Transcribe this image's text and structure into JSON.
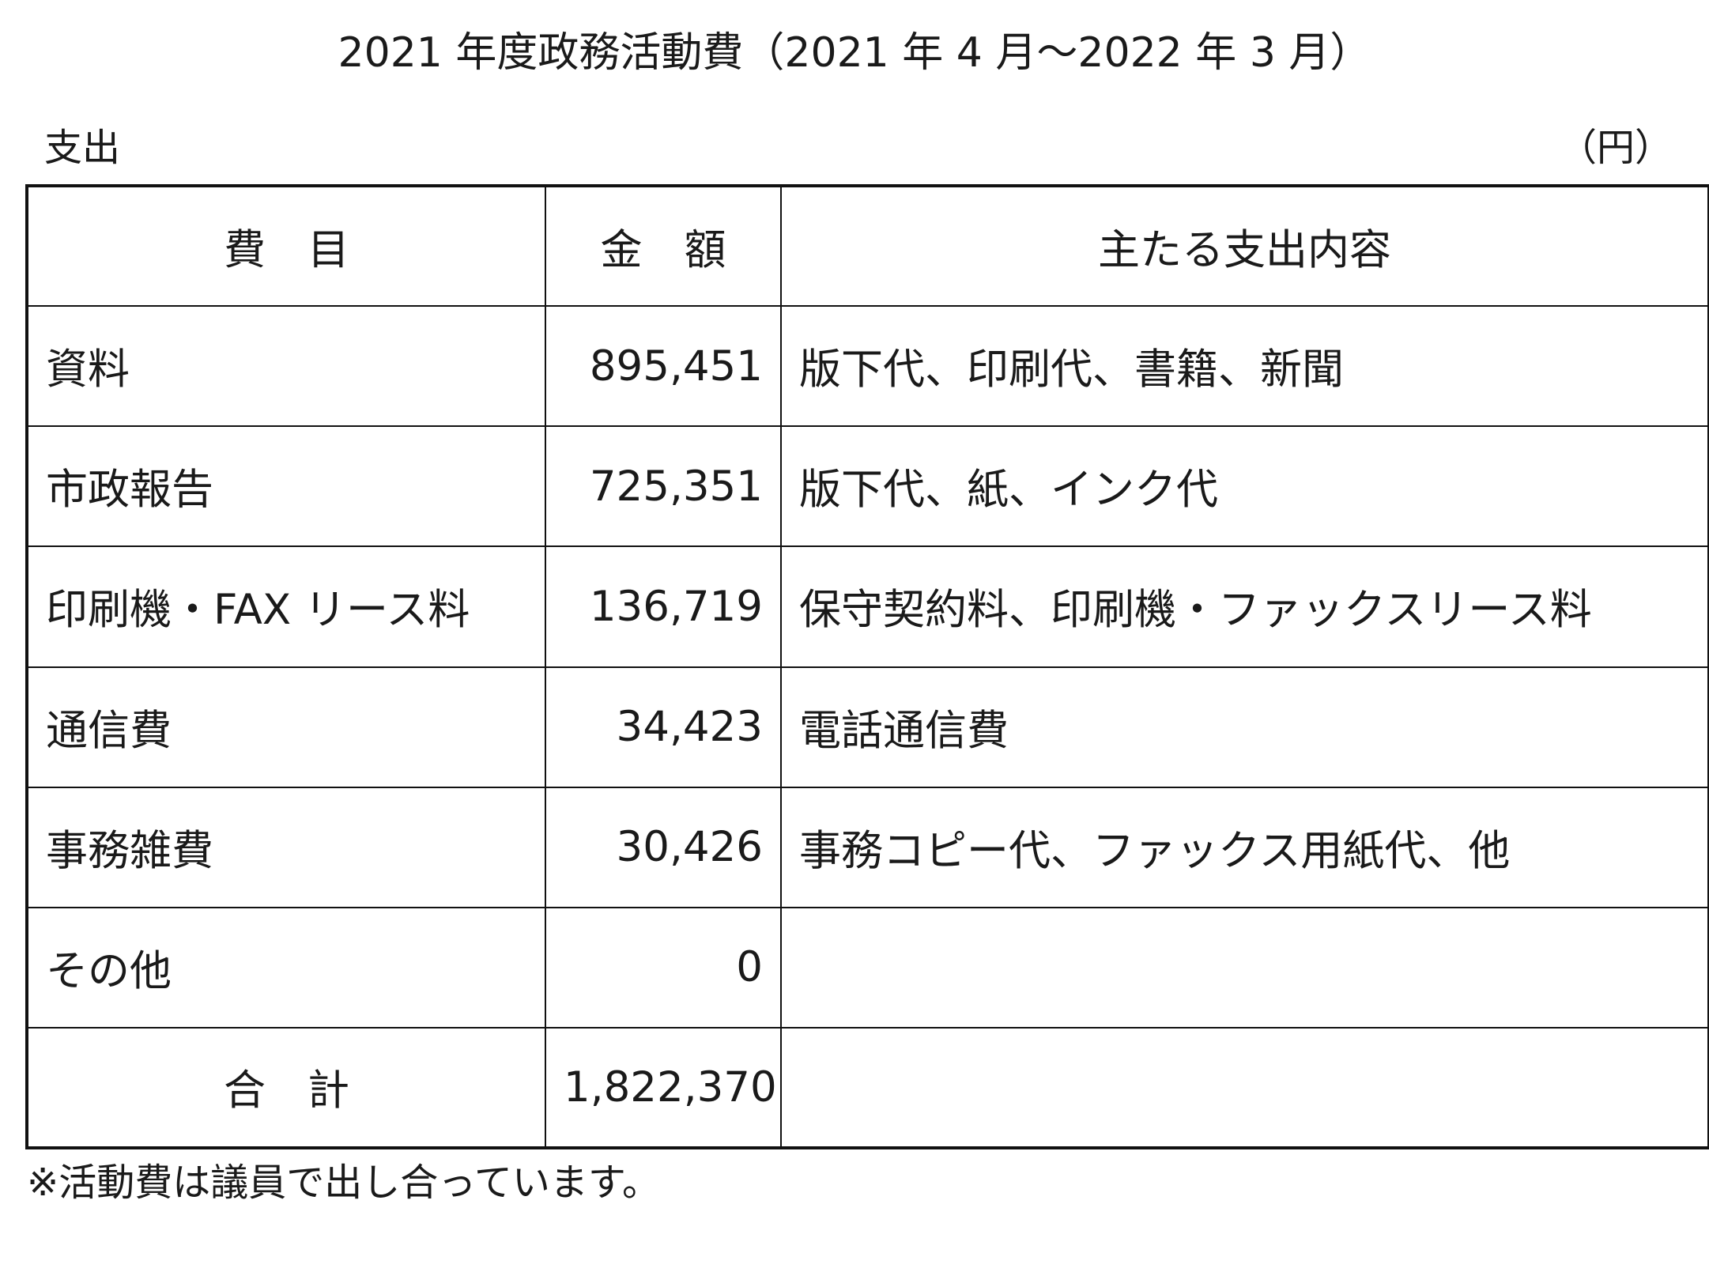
{
  "title": "2021 年度政務活動費（2021 年 4 月～2022 年 3 月）",
  "section_label": "支出",
  "unit_label": "（円）",
  "table": {
    "headers": {
      "item": "費　目",
      "amount": "金　額",
      "description": "主たる支出内容"
    },
    "rows": [
      {
        "item": "資料",
        "amount": "895,451",
        "description": "版下代、印刷代、書籍、新聞"
      },
      {
        "item": "市政報告",
        "amount": "725,351",
        "description": "版下代、紙、インク代"
      },
      {
        "item": "印刷機・FAX リース料",
        "amount": "136,719",
        "description": "保守契約料、印刷機・ファックスリース料"
      },
      {
        "item": "通信費",
        "amount": "34,423",
        "description": "電話通信費"
      },
      {
        "item": "事務雑費",
        "amount": "30,426",
        "description": "事務コピー代、ファックス用紙代、他"
      },
      {
        "item": "その他",
        "amount": "0",
        "description": ""
      }
    ],
    "total": {
      "label": "合　計",
      "amount": "1,822,370",
      "description": ""
    }
  },
  "footnote": "※活動費は議員で出し合っています。"
}
